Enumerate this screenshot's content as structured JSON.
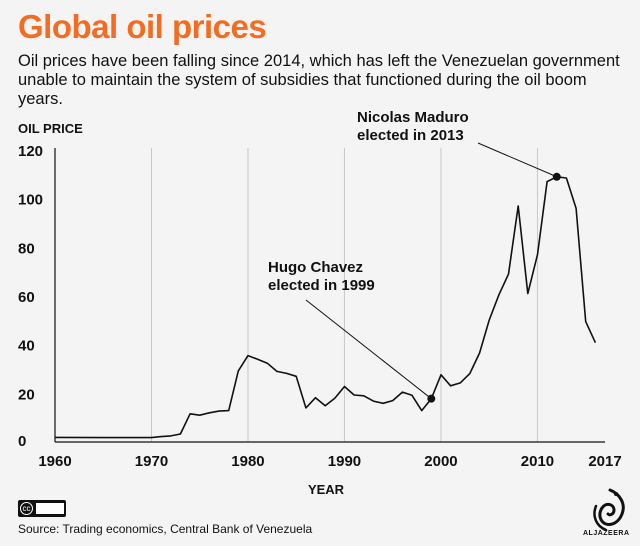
{
  "header": {
    "title": "Global oil prices",
    "subtitle": "Oil prices have been falling since 2014, which has left the Venezuelan government unable to maintain the system of subsidies that functioned during the oil boom years."
  },
  "footer": {
    "source": "Source: Trading economics, Central Bank of Venezuela",
    "license_icon": "creative-commons-icon",
    "logo_text": "ALJAZEERA",
    "logo_icon": "aljazeera-logo-icon"
  },
  "chart_data": {
    "type": "line",
    "ylabel": "OIL PRICE",
    "xlabel": "YEAR",
    "xlim": [
      1960,
      2017
    ],
    "ylim": [
      0,
      120
    ],
    "x_ticks": [
      "1960",
      "1970",
      "1980",
      "1990",
      "2000",
      "2010",
      "2017"
    ],
    "y_ticks": [
      "0",
      "20",
      "40",
      "60",
      "80",
      "100",
      "120"
    ],
    "grid": "vertical",
    "line_color": "#111111",
    "series": [
      {
        "x": [
          1960,
          1965,
          1970,
          1971,
          1972,
          1973,
          1974,
          1975,
          1976,
          1977,
          1978,
          1979,
          1980,
          1981,
          1982,
          1983,
          1984,
          1985,
          1986,
          1987,
          1988,
          1989,
          1990,
          1991,
          1992,
          1993,
          1994,
          1995,
          1996,
          1997,
          1998,
          1999,
          2000,
          2001,
          2002,
          2003,
          2004,
          2005,
          2006,
          2007,
          2008,
          2009,
          2010,
          2011,
          2012,
          2013,
          2014,
          2015,
          2016
        ],
        "y": [
          1.9,
          1.8,
          1.8,
          2.2,
          2.5,
          3.3,
          11.6,
          11.0,
          12.0,
          12.7,
          12.9,
          29.2,
          35.5,
          34.0,
          32.4,
          29.0,
          28.2,
          27.0,
          14.0,
          18.2,
          14.9,
          18.0,
          22.8,
          19.3,
          19.0,
          16.8,
          15.9,
          17.0,
          20.5,
          19.2,
          12.9,
          17.8,
          27.6,
          23.1,
          24.3,
          28.2,
          36.6,
          50.1,
          60.5,
          69.0,
          97.0,
          61.0,
          77.0,
          107.0,
          109.0,
          108.5,
          96.0,
          49.5,
          40.8
        ]
      }
    ],
    "annotations": [
      {
        "line1": "Hugo Chavez",
        "line2": "elected in 1999",
        "x": 1999,
        "y": 17.8
      },
      {
        "line1": "Nicolas Maduro",
        "line2": "elected in 2013",
        "x": 2012,
        "y": 109
      }
    ]
  }
}
